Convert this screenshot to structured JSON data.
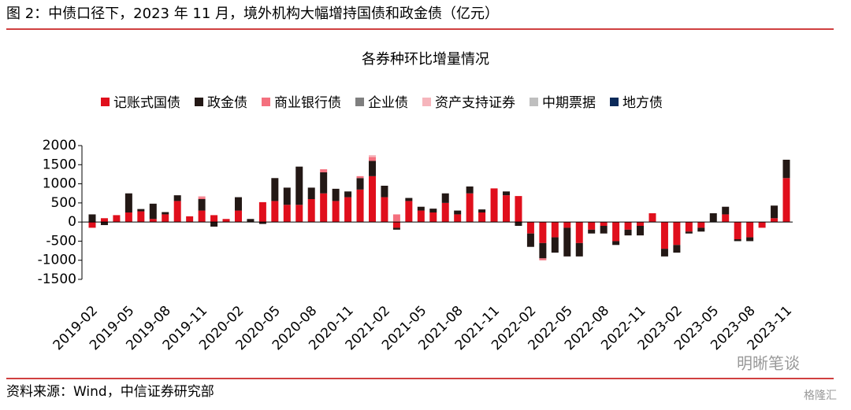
{
  "header": {
    "title": "图 2：中债口径下，2023 年 11 月，境外机构大幅增持国债和政金债（亿元）"
  },
  "footer": {
    "source": "资料来源：Wind，中信证券研究部",
    "watermark": "明晰笔谈",
    "watermark2": "格隆汇"
  },
  "chart_data": {
    "type": "stacked_bar",
    "title": "各券种环比增量情况",
    "categories": [
      "2019-02",
      null,
      null,
      "2019-05",
      null,
      null,
      "2019-08",
      null,
      null,
      "2019-11",
      null,
      null,
      "2020-02",
      null,
      null,
      "2020-05",
      null,
      null,
      "2020-08",
      null,
      null,
      "2020-11",
      null,
      null,
      "2021-02",
      null,
      null,
      "2021-05",
      null,
      null,
      "2021-08",
      null,
      null,
      "2021-11",
      null,
      null,
      "2022-02",
      null,
      null,
      "2022-05",
      null,
      null,
      "2022-08",
      null,
      null,
      "2022-11",
      null,
      null,
      "2023-02",
      null,
      null,
      "2023-05",
      null,
      null,
      "2023-08",
      null,
      null,
      "2023-11"
    ],
    "series": [
      {
        "name": "记账式国债",
        "color": "#e00f1c",
        "values": [
          -150,
          100,
          180,
          250,
          280,
          80,
          200,
          550,
          150,
          300,
          180,
          80,
          300,
          0,
          520,
          550,
          450,
          450,
          600,
          750,
          550,
          650,
          850,
          1200,
          650,
          -150,
          550,
          300,
          250,
          500,
          200,
          750,
          250,
          880,
          700,
          680,
          -300,
          -550,
          -400,
          -150,
          -550,
          -200,
          -100,
          -500,
          -200,
          -100,
          230,
          -700,
          -600,
          -250,
          -150,
          0,
          200,
          -450,
          -400,
          -150,
          100,
          1150
        ]
      },
      {
        "name": "政金债",
        "color": "#231815",
        "values": [
          200,
          -80,
          0,
          500,
          60,
          400,
          60,
          150,
          0,
          300,
          -120,
          0,
          350,
          80,
          -50,
          600,
          450,
          1000,
          300,
          550,
          320,
          150,
          300,
          400,
          300,
          -50,
          80,
          100,
          100,
          250,
          100,
          180,
          80,
          0,
          100,
          -100,
          -350,
          -400,
          -400,
          -750,
          -350,
          -100,
          -200,
          -100,
          -150,
          -250,
          0,
          -200,
          -200,
          -50,
          -100,
          230,
          200,
          -50,
          -100,
          0,
          330,
          480
        ]
      },
      {
        "name": "商业银行债",
        "color": "#f4707e",
        "values": [
          0,
          0,
          0,
          0,
          0,
          0,
          0,
          0,
          0,
          50,
          0,
          0,
          0,
          0,
          0,
          0,
          0,
          0,
          0,
          80,
          0,
          0,
          50,
          100,
          0,
          200,
          0,
          0,
          0,
          0,
          0,
          0,
          0,
          0,
          0,
          0,
          0,
          -50,
          0,
          0,
          0,
          0,
          0,
          0,
          0,
          0,
          0,
          0,
          0,
          0,
          0,
          0,
          0,
          0,
          0,
          0,
          0,
          0
        ]
      },
      {
        "name": "企业债",
        "color": "#7f7f7f",
        "values": [
          0,
          0,
          0,
          0,
          0,
          0,
          0,
          0,
          0,
          0,
          0,
          0,
          0,
          0,
          0,
          0,
          0,
          0,
          0,
          0,
          0,
          0,
          0,
          0,
          0,
          0,
          0,
          0,
          0,
          0,
          0,
          0,
          0,
          0,
          0,
          0,
          0,
          0,
          0,
          0,
          0,
          0,
          0,
          0,
          0,
          0,
          0,
          0,
          0,
          0,
          0,
          0,
          0,
          0,
          0,
          0,
          0,
          0
        ]
      },
      {
        "name": "资产支持证券",
        "color": "#f6b5bc",
        "values": [
          0,
          0,
          0,
          0,
          0,
          0,
          0,
          0,
          0,
          30,
          0,
          0,
          0,
          0,
          0,
          0,
          0,
          0,
          0,
          0,
          0,
          0,
          0,
          50,
          0,
          0,
          0,
          0,
          0,
          0,
          0,
          0,
          0,
          0,
          0,
          0,
          0,
          0,
          0,
          0,
          0,
          0,
          0,
          0,
          0,
          0,
          0,
          0,
          0,
          0,
          0,
          0,
          0,
          0,
          0,
          0,
          0,
          0
        ]
      },
      {
        "name": "中期票据",
        "color": "#bfbfbf",
        "values": [
          0,
          0,
          0,
          0,
          0,
          0,
          0,
          0,
          0,
          0,
          0,
          0,
          0,
          0,
          0,
          0,
          0,
          0,
          0,
          0,
          0,
          0,
          0,
          0,
          0,
          0,
          0,
          0,
          0,
          0,
          0,
          0,
          0,
          0,
          0,
          0,
          0,
          0,
          0,
          0,
          0,
          0,
          0,
          0,
          0,
          0,
          0,
          0,
          0,
          0,
          0,
          0,
          0,
          0,
          0,
          0,
          0,
          0
        ]
      },
      {
        "name": "地方债",
        "color": "#0b2a5a",
        "values": [
          0,
          0,
          0,
          0,
          0,
          0,
          0,
          0,
          0,
          0,
          0,
          0,
          0,
          0,
          0,
          0,
          0,
          0,
          0,
          0,
          0,
          0,
          0,
          0,
          0,
          0,
          0,
          0,
          0,
          0,
          0,
          0,
          0,
          0,
          0,
          0,
          0,
          0,
          0,
          0,
          0,
          0,
          0,
          0,
          0,
          0,
          0,
          0,
          0,
          0,
          0,
          0,
          0,
          0,
          0,
          0,
          0,
          0
        ]
      }
    ],
    "ylim": [
      -1500,
      2000
    ],
    "yticks": [
      -1500,
      -1000,
      -500,
      0,
      500,
      1000,
      1500,
      2000
    ]
  }
}
